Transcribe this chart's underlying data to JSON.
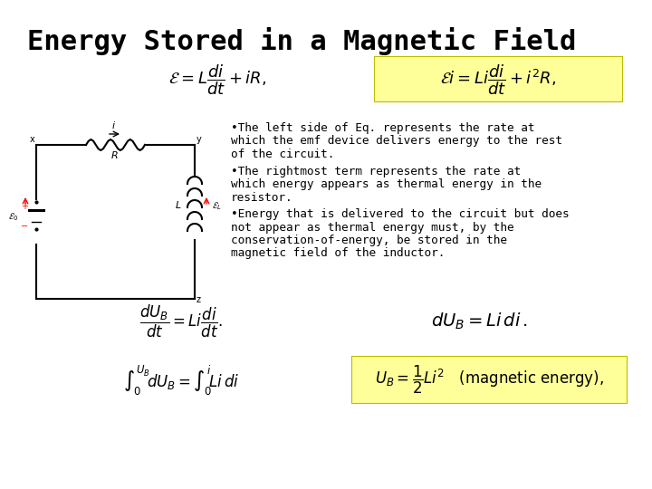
{
  "title": "Energy Stored in a Magnetic Field",
  "title_fontsize": 22,
  "background_color": "#ffffff",
  "highlight_color": "#ffff99",
  "text_color": "#000000",
  "eq1": "$\\mathcal{E} = L\\dfrac{di}{dt} + iR,$",
  "eq2": "$\\mathcal{E}i = Li\\dfrac{di}{dt} + i^{2}R,$",
  "eq3": "$\\dfrac{dU_B}{dt} = Li\\dfrac{di}{dt}.$",
  "eq4": "$dU_B = Li\\,di\\,.$",
  "eq5": "$\\int_0^{U_B}\\!dU_B = \\int_0^{i}\\!Li\\,di$",
  "eq6": "$U_B = \\dfrac{1}{2}Li^{2}$   (magnetic energy),",
  "bullet1_line1": "•The left side of Eq. represents the rate at",
  "bullet1_line2": "which the emf device delivers energy to the rest",
  "bullet1_line3": "of the circuit.",
  "bullet2_line1": "•The rightmost term represents the rate at",
  "bullet2_line2": "which energy appears as thermal energy in the",
  "bullet2_line3": "resistor.",
  "bullet3_line1": "•Energy that is delivered to the circuit but does",
  "bullet3_line2": "not appear as thermal energy must, by the",
  "bullet3_line3": "conservation-of-energy, be stored in the",
  "bullet3_line4": "magnetic field of the inductor.",
  "circuit_lw": 1.5,
  "circuit_col": "#000000"
}
